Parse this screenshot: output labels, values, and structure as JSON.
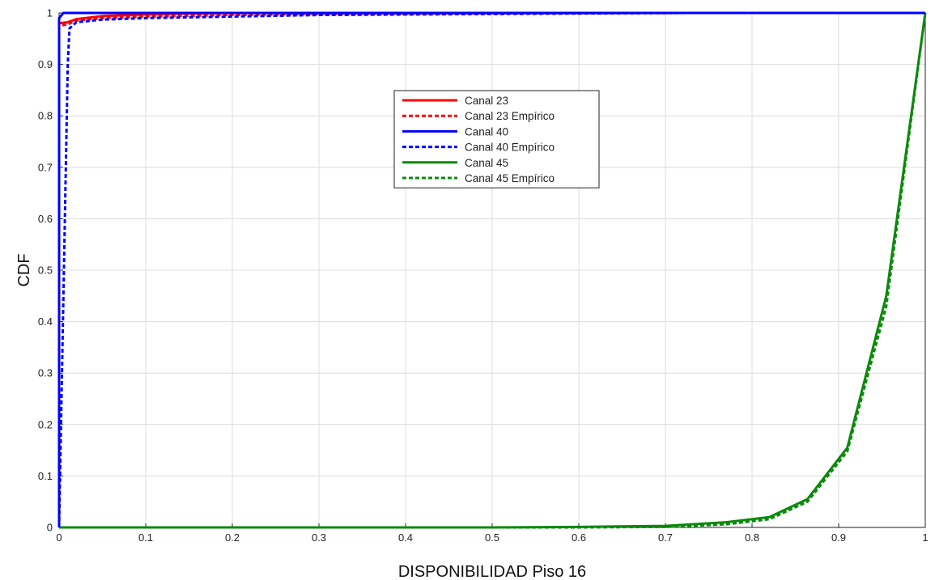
{
  "chart_data": {
    "type": "line",
    "title": "",
    "xlabel": "DISPONIBILIDAD Piso 16",
    "ylabel": "CDF",
    "xlim": [
      0,
      1
    ],
    "ylim": [
      0,
      1
    ],
    "xticks": [
      "0",
      "0.1",
      "0.2",
      "0.3",
      "0.4",
      "0.5",
      "0.6",
      "0.7",
      "0.8",
      "0.9",
      "1"
    ],
    "yticks": [
      "0",
      "0.1",
      "0.2",
      "0.3",
      "0.4",
      "0.5",
      "0.6",
      "0.7",
      "0.8",
      "0.9",
      "1"
    ],
    "grid": true,
    "legend_position": "upper-center",
    "series": [
      {
        "name": "Canal 23",
        "color": "#ff0000",
        "style": "solid",
        "x": [
          0,
          0,
          0.01,
          0.02,
          0.05,
          0.1,
          0.15,
          0.23,
          0.5,
          1
        ],
        "y": [
          0,
          0.98,
          0.982,
          0.988,
          0.994,
          0.997,
          0.999,
          1,
          1,
          1
        ]
      },
      {
        "name": "Canal 23 Empírico",
        "color": "#ff0000",
        "style": "dashed",
        "x": [
          0,
          0,
          0.01,
          0.02,
          0.05,
          0.1,
          0.2,
          0.3,
          0.5,
          0.73,
          1
        ],
        "y": [
          0,
          0.975,
          0.978,
          0.985,
          0.99,
          0.993,
          0.996,
          0.998,
          0.999,
          1,
          1
        ]
      },
      {
        "name": "Canal 40",
        "color": "#0000ff",
        "style": "solid",
        "x": [
          0,
          0,
          0.005,
          1
        ],
        "y": [
          0,
          0.99,
          1,
          1
        ]
      },
      {
        "name": "Canal 40 Empírico",
        "color": "#0000ff",
        "style": "dashed",
        "x": [
          0,
          0.01,
          0.012,
          0.02,
          0.05,
          0.1,
          0.2,
          0.3,
          0.5,
          0.73,
          1
        ],
        "y": [
          0,
          0.9,
          0.97,
          0.982,
          0.987,
          0.99,
          0.993,
          0.996,
          0.998,
          1,
          1
        ]
      },
      {
        "name": "Canal 45",
        "color": "#0a8a0a",
        "style": "solid",
        "x": [
          0,
          0.5,
          0.6,
          0.7,
          0.77,
          0.82,
          0.864,
          0.91,
          0.955,
          1
        ],
        "y": [
          0,
          0,
          0.001,
          0.003,
          0.01,
          0.02,
          0.055,
          0.155,
          0.45,
          1
        ]
      },
      {
        "name": "Canal 45 Empírico",
        "color": "#0a8a0a",
        "style": "dashed",
        "x": [
          0,
          0.5,
          0.6,
          0.7,
          0.77,
          0.82,
          0.864,
          0.91,
          0.955,
          1
        ],
        "y": [
          0,
          0,
          0,
          0.001,
          0.006,
          0.016,
          0.05,
          0.148,
          0.43,
          1
        ]
      }
    ]
  }
}
